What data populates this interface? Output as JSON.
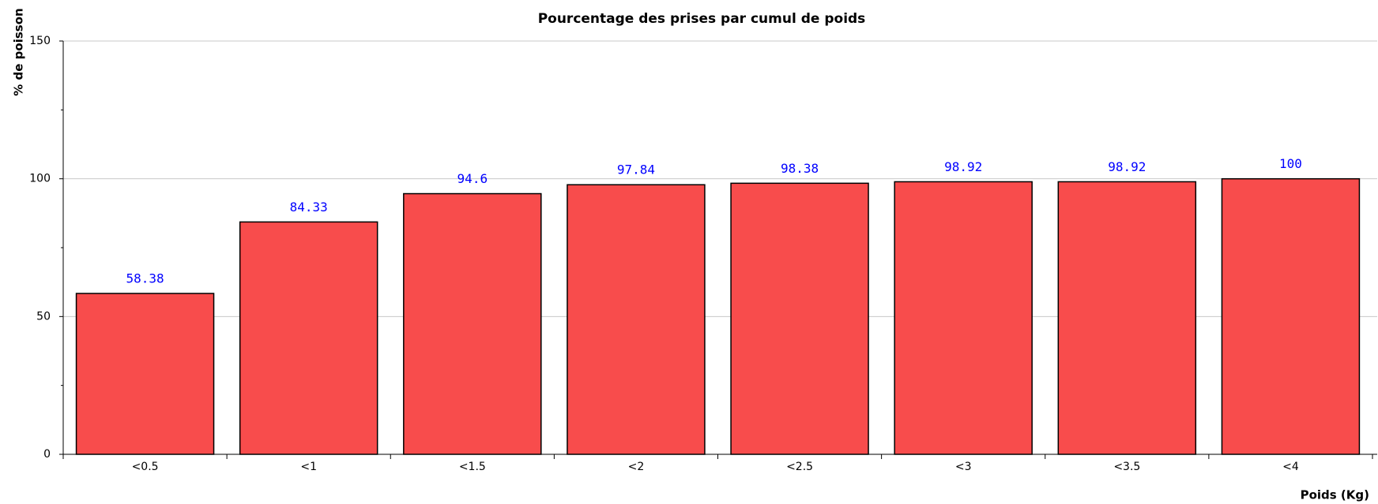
{
  "chart_data": {
    "type": "bar",
    "title": "Pourcentage des prises par cumul de poids",
    "x_label": "Poids (Kg)",
    "y_label": "% de poisson",
    "categories": [
      "<0.5",
      "<1",
      "<1.5",
      "<2",
      "<2.5",
      "<3",
      "<3.5",
      "<4"
    ],
    "values": [
      58.38,
      84.33,
      94.6,
      97.84,
      98.38,
      98.92,
      98.92,
      100
    ],
    "color": "#f84c4c",
    "label_color": "#0000ff",
    "ylim": [
      0,
      150
    ],
    "yticks": [
      0,
      50,
      100,
      150
    ],
    "minor_yticks": [
      25,
      75,
      125
    ],
    "grid": true
  }
}
